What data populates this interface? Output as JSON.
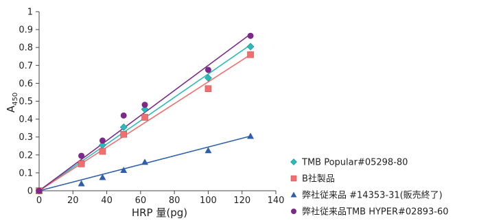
{
  "chart_data": {
    "type": "scatter",
    "xlabel": "HRP 量(pg)",
    "ylabel": "A",
    "ylabel_subscript": "450",
    "xlim": [
      0,
      140
    ],
    "ylim": [
      0,
      1
    ],
    "xticks": [
      0,
      20,
      40,
      60,
      80,
      100,
      120,
      140
    ],
    "yticks": [
      0,
      0.1,
      0.2,
      0.3,
      0.4,
      0.5,
      0.6,
      0.7,
      0.8,
      0.9,
      1
    ],
    "ytick_labels": [
      "0",
      "0.1",
      "0.2",
      "0.3",
      "0.4",
      "0.5",
      "0.6",
      "0.7",
      "0.8",
      "0.9",
      "1"
    ],
    "grid": false,
    "legend_position": "bottom-right",
    "series": [
      {
        "name": "TMB Popular#05298-80",
        "marker": "diamond",
        "color": "#2bbab9",
        "points": [
          [
            0,
            0.0
          ],
          [
            25,
            0.155
          ],
          [
            37.5,
            0.255
          ],
          [
            50,
            0.355
          ],
          [
            62.5,
            0.455
          ],
          [
            100,
            0.63
          ],
          [
            125,
            0.805
          ]
        ],
        "fit": [
          [
            0,
            0.0
          ],
          [
            125,
            0.815
          ]
        ]
      },
      {
        "name": "B社製品",
        "marker": "square",
        "color": "#f06f6f",
        "points": [
          [
            0,
            0.0
          ],
          [
            25,
            0.15
          ],
          [
            37.5,
            0.22
          ],
          [
            50,
            0.315
          ],
          [
            62.5,
            0.41
          ],
          [
            100,
            0.57
          ],
          [
            125,
            0.76
          ]
        ],
        "fit": [
          [
            0,
            0.0
          ],
          [
            125,
            0.76
          ]
        ]
      },
      {
        "name": "弊社従来品 #14353-31(販売終了)",
        "marker": "triangle",
        "color": "#2e5faa",
        "points": [
          [
            0,
            0.0
          ],
          [
            25,
            0.04
          ],
          [
            37.5,
            0.075
          ],
          [
            50,
            0.115
          ],
          [
            62.5,
            0.16
          ],
          [
            100,
            0.225
          ],
          [
            125,
            0.305
          ]
        ],
        "fit": [
          [
            0,
            0.0
          ],
          [
            125,
            0.305
          ]
        ]
      },
      {
        "name": "弊社従来品TMB HYPER#02893-60",
        "marker": "circle",
        "color": "#7c2a8a",
        "points": [
          [
            0,
            0.0
          ],
          [
            25,
            0.195
          ],
          [
            37.5,
            0.28
          ],
          [
            50,
            0.42
          ],
          [
            62.5,
            0.48
          ],
          [
            100,
            0.675
          ],
          [
            125,
            0.865
          ]
        ],
        "fit": [
          [
            0,
            0.0
          ],
          [
            125,
            0.875
          ]
        ]
      }
    ]
  }
}
